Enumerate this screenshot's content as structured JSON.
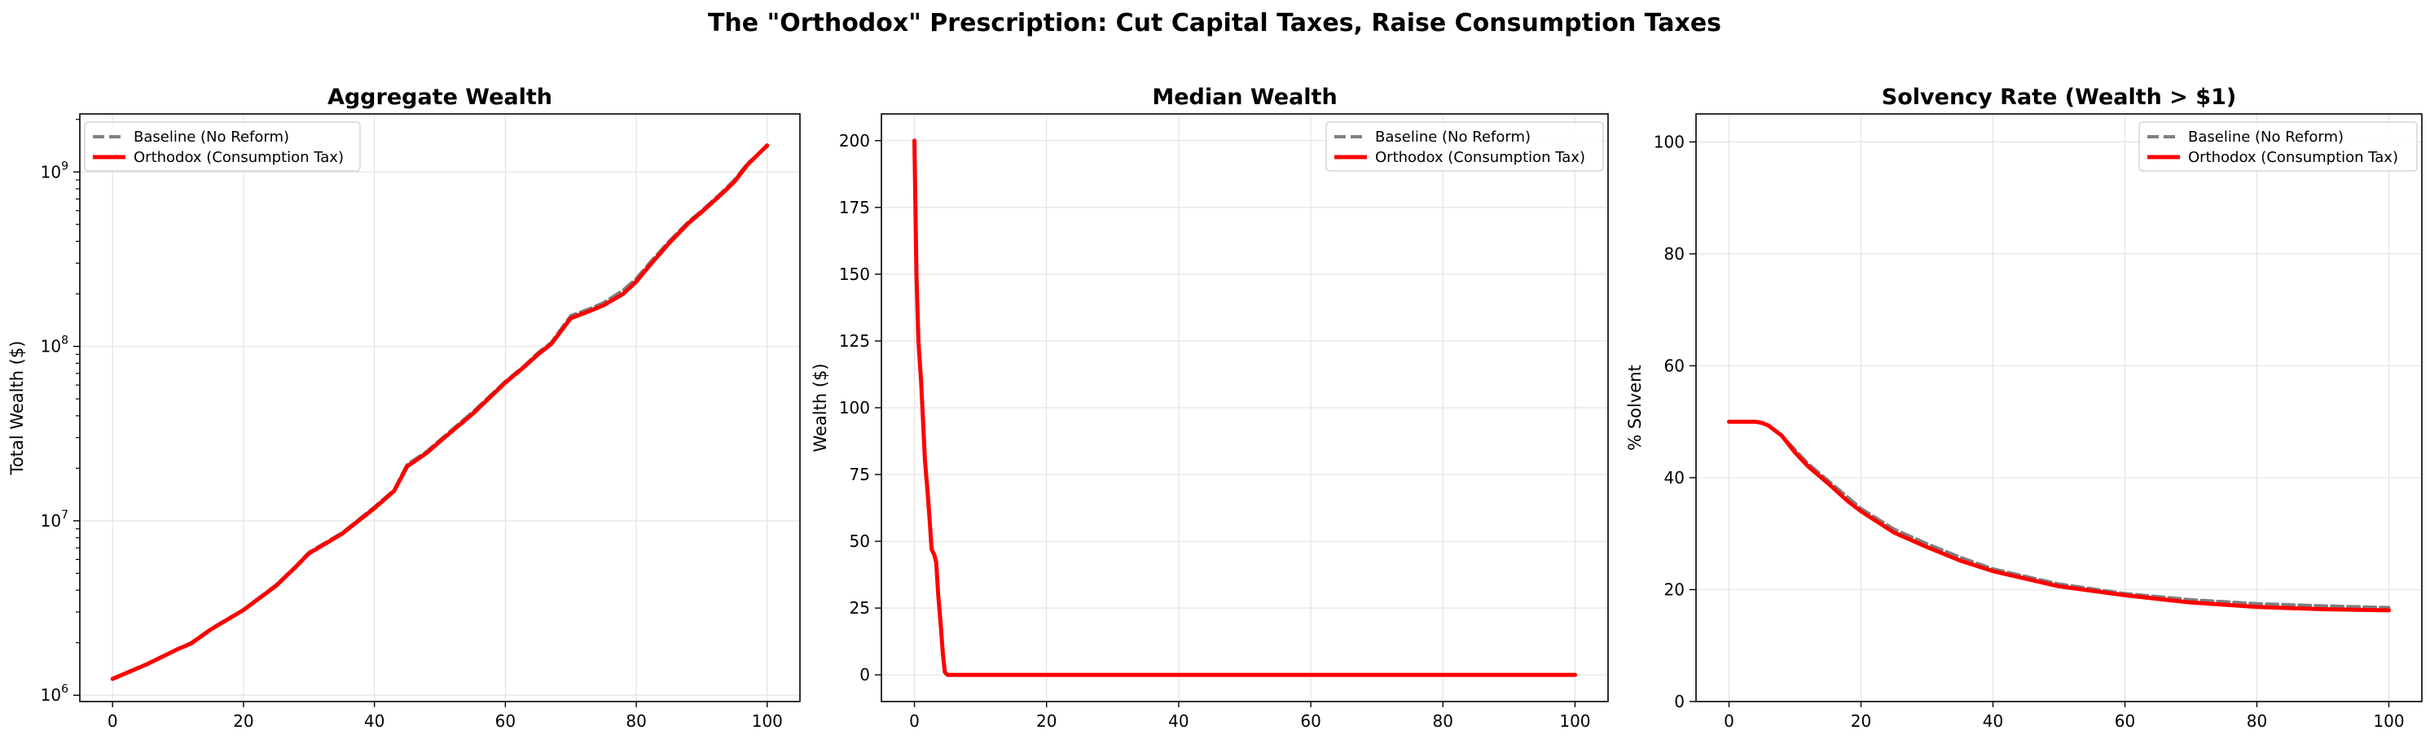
{
  "figure": {
    "title": "The \"Orthodox\" Prescription: Cut Capital Taxes, Raise Consumption Taxes"
  },
  "colors": {
    "baseline": "#7f7f7f",
    "orthodox": "#ff0000"
  },
  "chart_data": [
    {
      "type": "line",
      "title": "Aggregate Wealth",
      "xlabel": "",
      "ylabel": "Total Wealth ($)",
      "yscale": "log",
      "xlim": [
        -5,
        105
      ],
      "ylim": [
        920000,
        2150000000
      ],
      "xticks": [
        0,
        20,
        40,
        60,
        80,
        100
      ],
      "yticks": [
        {
          "value": 1000000,
          "base": "10",
          "exp": "6"
        },
        {
          "value": 10000000,
          "base": "10",
          "exp": "7"
        },
        {
          "value": 100000000,
          "base": "10",
          "exp": "8"
        },
        {
          "value": 1000000000,
          "base": "10",
          "exp": "9"
        }
      ],
      "grid": true,
      "legend": "upper-left",
      "x": [
        0,
        5,
        10,
        12,
        15,
        20,
        25,
        28,
        30,
        35,
        40,
        43,
        45,
        48,
        50,
        55,
        60,
        63,
        65,
        67,
        70,
        73,
        75,
        78,
        80,
        82,
        85,
        88,
        90,
        93,
        95,
        97,
        100
      ],
      "series": [
        {
          "name": "Baseline (No Reform)",
          "style": "dashed",
          "values": [
            1250000,
            1500000,
            1850000,
            2000000,
            2400000,
            3100000,
            4300000,
            5500000,
            6600000,
            8500000,
            12000000,
            15000000,
            21000000,
            25000000,
            29000000,
            42000000,
            63000000,
            78000000,
            92000000,
            105000000,
            150000000,
            165000000,
            178000000,
            210000000,
            245000000,
            300000000,
            400000000,
            520000000,
            600000000,
            760000000,
            900000000,
            1120000000,
            1400000000
          ]
        },
        {
          "name": "Orthodox (Consumption Tax)",
          "style": "solid",
          "values": [
            1240000,
            1490000,
            1840000,
            1980000,
            2380000,
            3080000,
            4250000,
            5450000,
            6500000,
            8400000,
            11800000,
            14800000,
            20500000,
            24500000,
            28500000,
            41000000,
            62000000,
            77000000,
            90000000,
            103000000,
            145000000,
            160000000,
            172000000,
            200000000,
            235000000,
            290000000,
            390000000,
            510000000,
            590000000,
            745000000,
            880000000,
            1100000000,
            1420000000
          ]
        }
      ]
    },
    {
      "type": "line",
      "title": "Median Wealth",
      "xlabel": "",
      "ylabel": "Wealth ($)",
      "yscale": "linear",
      "xlim": [
        -5,
        105
      ],
      "ylim": [
        -10,
        210
      ],
      "xticks": [
        0,
        20,
        40,
        60,
        80,
        100
      ],
      "yticks": [
        0,
        25,
        50,
        75,
        100,
        125,
        150,
        175,
        200
      ],
      "grid": true,
      "legend": "upper-right",
      "x": [
        0,
        0.3,
        0.6,
        1,
        1.3,
        1.6,
        2,
        2.3,
        2.6,
        3,
        3.3,
        3.6,
        4,
        4.3,
        4.6,
        5,
        10,
        20,
        40,
        60,
        80,
        100
      ],
      "series": [
        {
          "name": "Baseline (No Reform)",
          "style": "dashed",
          "values": [
            200,
            150,
            125,
            110,
            95,
            80,
            68,
            58,
            47,
            45,
            42,
            30,
            18,
            8,
            1,
            0,
            0,
            0,
            0,
            0,
            0,
            0
          ]
        },
        {
          "name": "Orthodox (Consumption Tax)",
          "style": "solid",
          "values": [
            200,
            150,
            125,
            110,
            95,
            80,
            68,
            58,
            47,
            45,
            42,
            30,
            18,
            8,
            1,
            0,
            0,
            0,
            0,
            0,
            0,
            0
          ]
        }
      ]
    },
    {
      "type": "line",
      "title": "Solvency Rate (Wealth > $1)",
      "xlabel": "",
      "ylabel": "% Solvent",
      "yscale": "linear",
      "xlim": [
        -5,
        105
      ],
      "ylim": [
        0,
        105
      ],
      "xticks": [
        0,
        20,
        40,
        60,
        80,
        100
      ],
      "yticks": [
        0,
        20,
        40,
        60,
        80,
        100
      ],
      "grid": true,
      "legend": "upper-right",
      "x": [
        0,
        2,
        4,
        5,
        6,
        8,
        10,
        12,
        15,
        18,
        20,
        25,
        30,
        35,
        40,
        50,
        60,
        70,
        80,
        90,
        100
      ],
      "series": [
        {
          "name": "Baseline (No Reform)",
          "style": "dashed",
          "values": [
            50,
            50,
            50,
            49.8,
            49.3,
            47.5,
            45,
            42.5,
            39.5,
            36.5,
            34.5,
            30.8,
            28.2,
            25.8,
            23.7,
            21,
            19.3,
            18.2,
            17.5,
            17.1,
            16.8
          ]
        },
        {
          "name": "Orthodox (Consumption Tax)",
          "style": "solid",
          "values": [
            50,
            50,
            50,
            49.8,
            49.3,
            47.5,
            44.5,
            42,
            39,
            35.8,
            34,
            30.2,
            27.6,
            25.2,
            23.3,
            20.6,
            19,
            17.7,
            16.9,
            16.5,
            16.3
          ]
        }
      ]
    }
  ]
}
